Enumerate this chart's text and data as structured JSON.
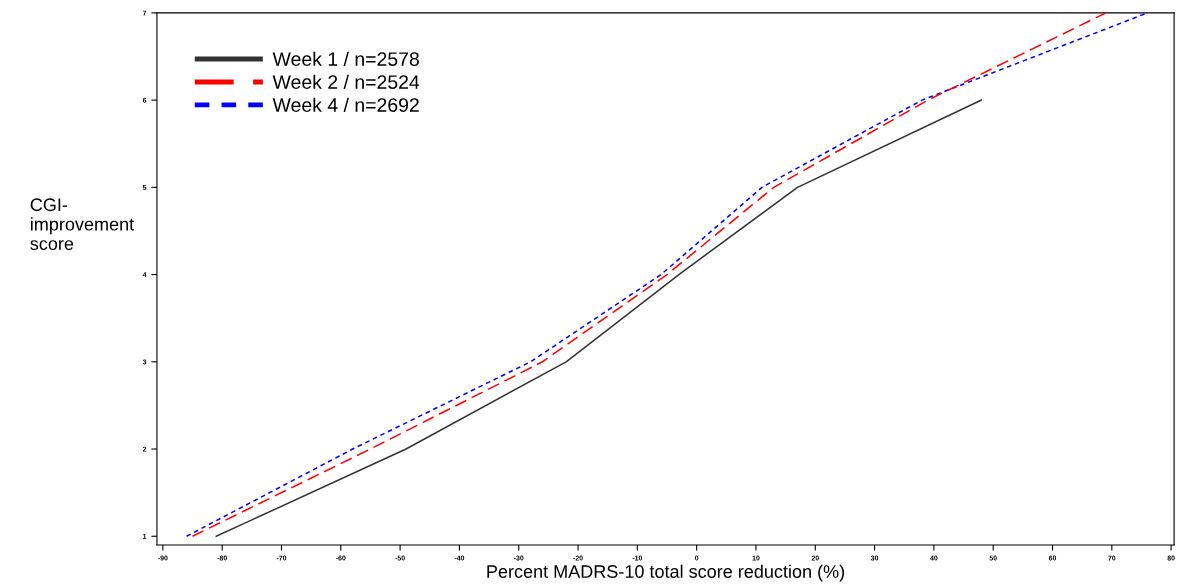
{
  "chart_data": {
    "type": "line",
    "xlabel": "Percent MADRS-10 total score reduction (%)",
    "ylabel": "CGI-\nimprovement\nscore",
    "xlim": [
      -91,
      80.5
    ],
    "ylim": [
      0.9,
      7
    ],
    "xticks": [
      -90,
      -80,
      -70,
      -60,
      -50,
      -40,
      -30,
      -20,
      -10,
      0,
      10,
      20,
      30,
      40,
      50,
      60,
      70,
      80
    ],
    "yticks": [
      1,
      2,
      3,
      4,
      5,
      6,
      7
    ],
    "grid": false,
    "legend": "top left",
    "marker": "none",
    "series": [
      {
        "name": "Week 1 / n=2578",
        "color": "#333333",
        "line_style": "solid",
        "x": [
          -81,
          -49,
          -22,
          -3,
          17,
          48
        ],
        "values": [
          1,
          2,
          3,
          4,
          5,
          6
        ]
      },
      {
        "name": "Week 2 / n=2524",
        "color": "#ff0000",
        "line_style": "dashed",
        "x": [
          -85,
          -55,
          -26,
          -5,
          13,
          39,
          69
        ],
        "values": [
          1,
          2,
          3,
          4,
          5,
          6,
          7
        ]
      },
      {
        "name": "Week 4 / n=2692",
        "color": "#0000ff",
        "line_style": "dotted",
        "x": [
          -86,
          -58,
          -28,
          -6,
          11,
          38,
          76
        ],
        "values": [
          1,
          2,
          3,
          4,
          5,
          6,
          7
        ]
      }
    ]
  }
}
